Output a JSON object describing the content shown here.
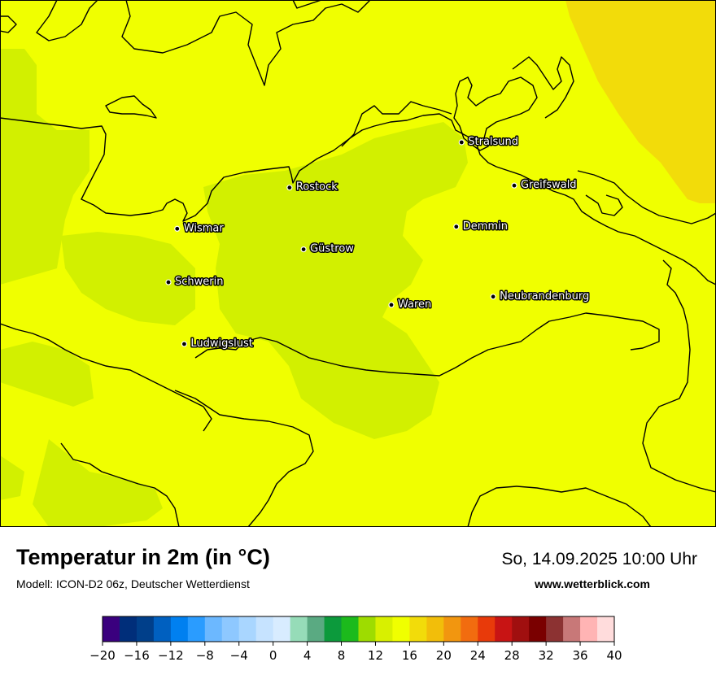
{
  "map": {
    "title": "Temperatur in 2m (in °C)",
    "model": "Modell: ICON-D2 06z, Deutscher Wetterdienst",
    "datetime": "So, 14.09.2025 10:00 Uhr",
    "website": "www.wetterblick.com",
    "field_colors": {
      "base": "#f0ff00",
      "cooler": "#d2f000",
      "warmer": "#f2dc0a",
      "coastline": "#000000"
    },
    "cities": [
      {
        "name": "Stralsund",
        "lon": 13.08,
        "lat": 54.31
      },
      {
        "name": "Rostock",
        "lon": 12.1,
        "lat": 54.09
      },
      {
        "name": "Greifswald",
        "lon": 13.38,
        "lat": 54.1
      },
      {
        "name": "Wismar",
        "lon": 11.46,
        "lat": 53.89
      },
      {
        "name": "Demmin",
        "lon": 13.05,
        "lat": 53.9
      },
      {
        "name": "Güstrow",
        "lon": 12.18,
        "lat": 53.79
      },
      {
        "name": "Schwerin",
        "lon": 11.41,
        "lat": 53.63
      },
      {
        "name": "Neubrandenburg",
        "lon": 13.26,
        "lat": 53.56
      },
      {
        "name": "Waren",
        "lon": 12.68,
        "lat": 53.52
      },
      {
        "name": "Ludwigslust",
        "lon": 11.5,
        "lat": 53.33
      }
    ]
  },
  "legend": {
    "colors": [
      "#3a007e",
      "#002e7a",
      "#003f8a",
      "#0060c0",
      "#0080f0",
      "#2a9cff",
      "#6cb8ff",
      "#8ec8ff",
      "#a9d6ff",
      "#c6e3ff",
      "#d8ecff",
      "#96dcb8",
      "#5aaa82",
      "#0c9a3c",
      "#1cba1c",
      "#9edc00",
      "#d8f000",
      "#f0ff00",
      "#f2dc0a",
      "#f2be0a",
      "#f2960f",
      "#f26c0f",
      "#e83a0a",
      "#c81414",
      "#a00f0f",
      "#7a0000",
      "#8c3232",
      "#c87878",
      "#ffb4b4",
      "#ffdcdc"
    ],
    "min": -20,
    "max": 40,
    "ticks": [
      "−20",
      "−16",
      "−12",
      "−8",
      "−4",
      "0",
      "4",
      "8",
      "12",
      "16",
      "20",
      "24",
      "28",
      "32",
      "36",
      "40"
    ]
  }
}
